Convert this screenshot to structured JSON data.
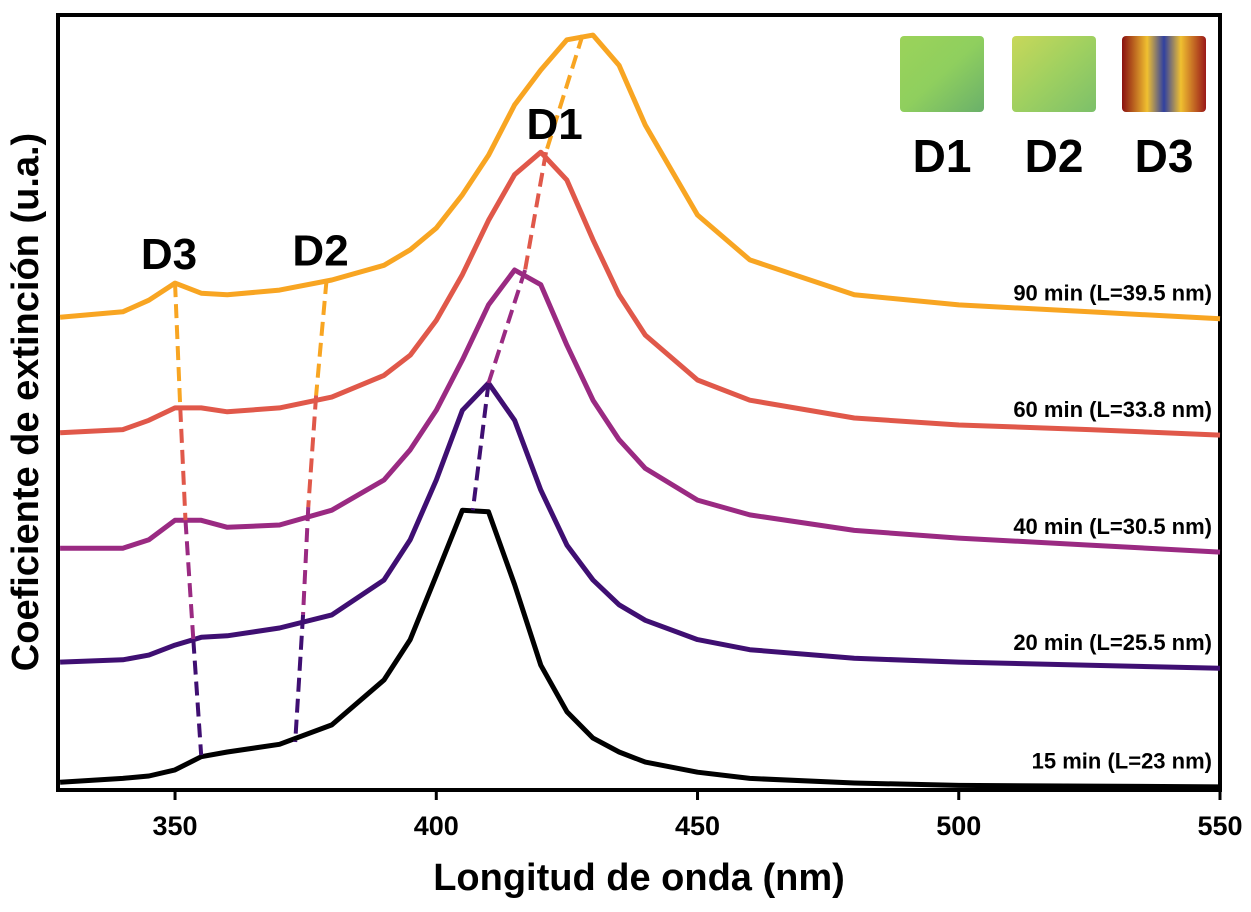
{
  "chart_data": {
    "type": "line",
    "x_label": "Longitud de onda (nm)",
    "y_label": "Coeficiente de extinción (u.a.)",
    "xlim": [
      327.6,
      550
    ],
    "ylim": [
      0,
      1
    ],
    "xticks": [
      350,
      400,
      450,
      500,
      550
    ],
    "x": [
      328,
      340,
      345,
      350,
      355,
      360,
      370,
      380,
      390,
      395,
      400,
      405,
      410,
      415,
      420,
      425,
      430,
      435,
      440,
      450,
      460,
      480,
      500,
      525,
      550
    ],
    "series": [
      {
        "name": "90 min (L=39.5 nm)",
        "color": "#f8a522",
        "values": [
          0.61,
          0.617,
          0.632,
          0.654,
          0.641,
          0.639,
          0.645,
          0.658,
          0.677,
          0.697,
          0.725,
          0.768,
          0.819,
          0.884,
          0.929,
          0.968,
          0.974,
          0.935,
          0.858,
          0.742,
          0.684,
          0.639,
          0.626,
          0.617,
          0.608
        ]
      },
      {
        "name": "60 min (L=33.8 nm)",
        "color": "#e0584a",
        "values": [
          0.461,
          0.465,
          0.477,
          0.493,
          0.493,
          0.488,
          0.493,
          0.507,
          0.535,
          0.561,
          0.606,
          0.665,
          0.735,
          0.794,
          0.823,
          0.787,
          0.71,
          0.639,
          0.587,
          0.529,
          0.503,
          0.48,
          0.471,
          0.465,
          0.458
        ]
      },
      {
        "name": "40 min (L=30.5 nm)",
        "color": "#9a2a82",
        "values": [
          0.312,
          0.312,
          0.323,
          0.348,
          0.348,
          0.339,
          0.342,
          0.361,
          0.4,
          0.439,
          0.49,
          0.555,
          0.626,
          0.671,
          0.652,
          0.574,
          0.503,
          0.452,
          0.415,
          0.374,
          0.355,
          0.335,
          0.325,
          0.316,
          0.307
        ]
      },
      {
        "name": "20 min (L=25.5 nm)",
        "color": "#3f0f72",
        "values": [
          0.165,
          0.168,
          0.174,
          0.187,
          0.197,
          0.199,
          0.209,
          0.226,
          0.271,
          0.323,
          0.4,
          0.49,
          0.525,
          0.477,
          0.387,
          0.316,
          0.271,
          0.239,
          0.219,
          0.194,
          0.181,
          0.17,
          0.165,
          0.161,
          0.157
        ]
      },
      {
        "name": "15 min (L=23 nm)",
        "color": "#000000",
        "values": [
          0.01,
          0.015,
          0.018,
          0.026,
          0.043,
          0.049,
          0.059,
          0.084,
          0.142,
          0.194,
          0.277,
          0.361,
          0.359,
          0.265,
          0.161,
          0.101,
          0.067,
          0.049,
          0.036,
          0.023,
          0.015,
          0.009,
          0.006,
          0.005,
          0.004
        ]
      }
    ],
    "guides": [
      {
        "label": "D3",
        "x": [
          350,
          351,
          352,
          353.5,
          355
        ],
        "y": [
          0.654,
          0.493,
          0.348,
          0.194,
          0.045
        ]
      },
      {
        "label": "D2",
        "x": [
          379,
          377,
          375.5,
          374.5,
          373
        ],
        "y": [
          0.658,
          0.509,
          0.365,
          0.226,
          0.062
        ]
      },
      {
        "label": "D1",
        "x": [
          428,
          421,
          417,
          410,
          407
        ],
        "y": [
          0.974,
          0.823,
          0.671,
          0.525,
          0.361
        ]
      }
    ],
    "inset_labels": [
      "D1",
      "D2",
      "D3"
    ]
  }
}
